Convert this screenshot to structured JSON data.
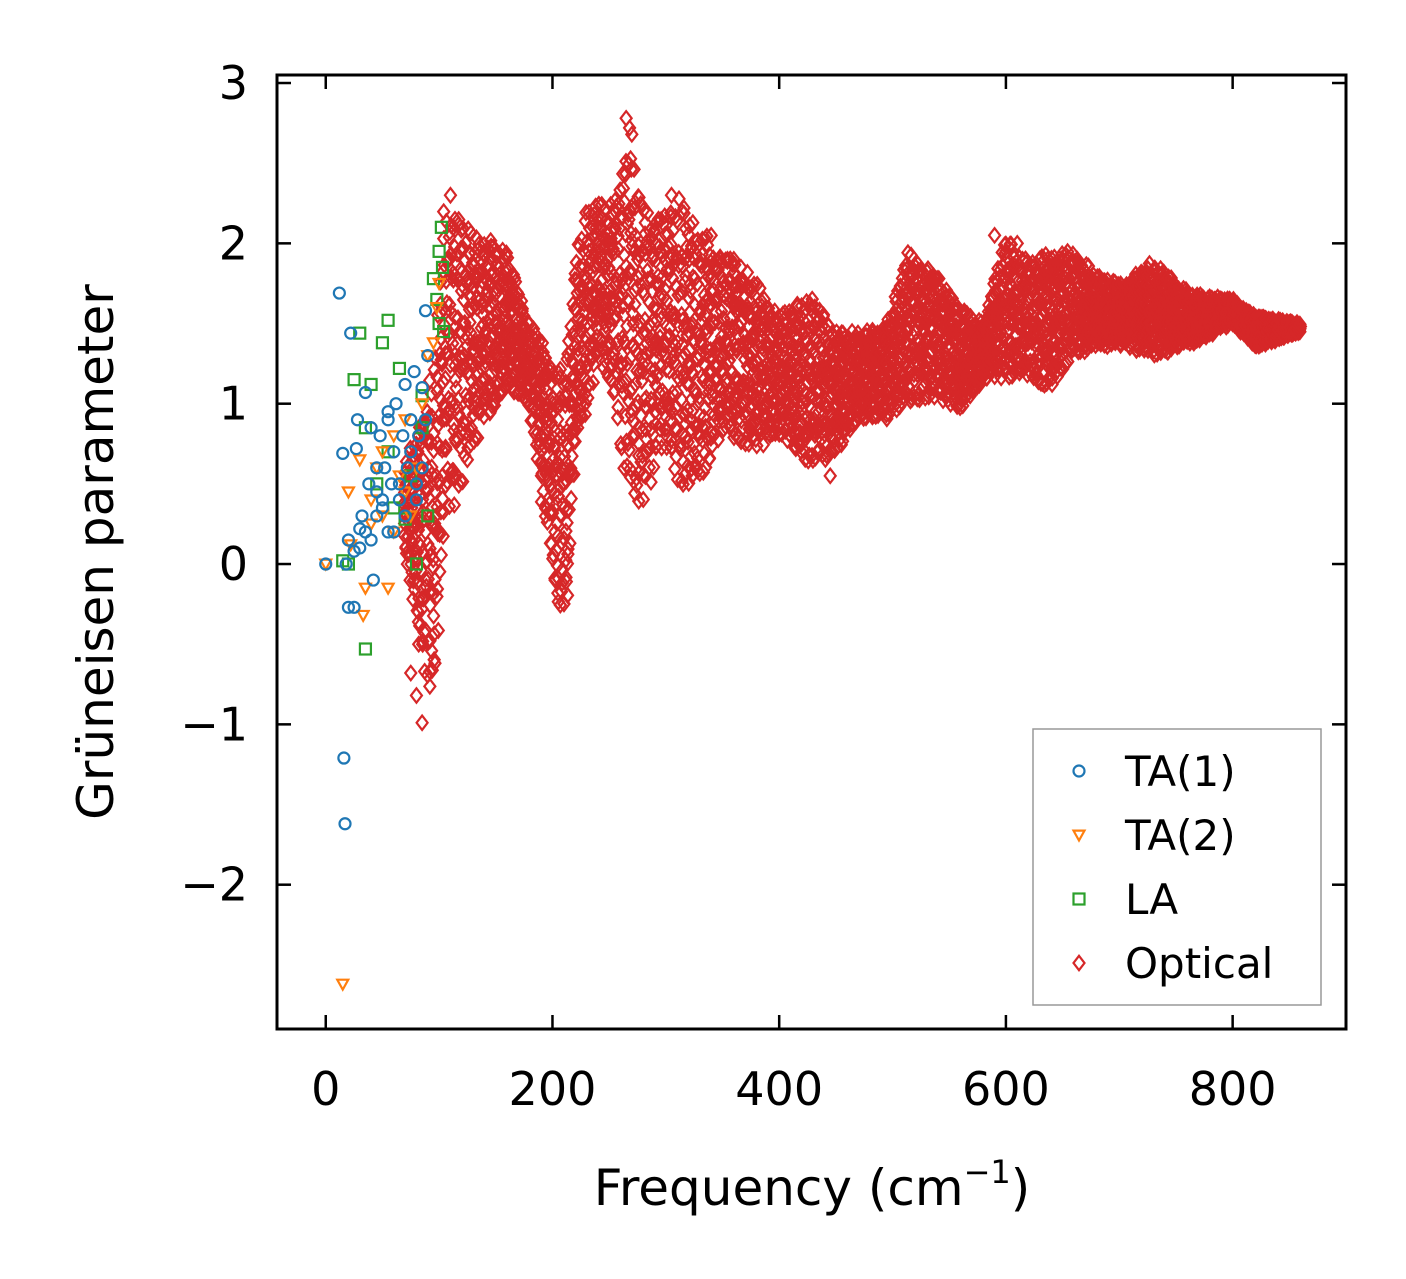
{
  "chart_data": {
    "type": "scatter",
    "title": "",
    "xlabel": "Frequency (cm",
    "xlabel_sup": "−1",
    "xlabel_end": ")",
    "ylabel": "Grüneisen parameter",
    "xlim": [
      -43,
      900
    ],
    "ylim": [
      -2.9,
      3.05
    ],
    "xticks": [
      0,
      200,
      400,
      600,
      800
    ],
    "xtick_labels": [
      "0",
      "200",
      "400",
      "600",
      "800"
    ],
    "yticks": [
      -2,
      -1,
      0,
      1,
      2,
      3
    ],
    "ytick_labels": [
      "−2",
      "−1",
      "0",
      "1",
      "2",
      "3"
    ],
    "grid": false,
    "legend_position": "lower-right",
    "series": [
      {
        "name": "TA(1)",
        "marker": "circle",
        "color": "#1f77b4",
        "x": [
          0,
          12,
          15,
          16,
          17,
          18,
          20,
          22,
          25,
          27,
          28,
          30,
          32,
          35,
          35,
          38,
          40,
          42,
          45,
          45,
          48,
          50,
          52,
          55,
          55,
          58,
          60,
          62,
          65,
          68,
          70,
          72,
          75,
          78,
          80,
          82,
          85,
          88,
          90,
          88,
          85,
          80,
          75,
          70,
          65,
          60,
          55,
          50,
          45,
          40,
          30,
          25,
          20
        ],
        "y": [
          0.0,
          1.69,
          0.69,
          -1.21,
          -1.62,
          0.0,
          -0.27,
          1.44,
          -0.27,
          0.72,
          0.9,
          0.1,
          0.3,
          1.07,
          0.2,
          0.5,
          0.85,
          -0.1,
          0.3,
          0.6,
          0.8,
          0.4,
          0.6,
          0.9,
          0.2,
          0.5,
          0.7,
          1.0,
          0.4,
          0.8,
          1.12,
          0.6,
          0.9,
          1.2,
          0.5,
          0.8,
          1.1,
          1.58,
          1.3,
          0.9,
          0.6,
          0.4,
          0.7,
          0.3,
          0.5,
          0.2,
          0.95,
          0.35,
          0.45,
          0.15,
          0.22,
          0.08,
          0.15
        ]
      },
      {
        "name": "TA(2)",
        "marker": "triangle-down",
        "color": "#ff7f0e",
        "x": [
          0,
          15,
          20,
          22,
          30,
          33,
          35,
          40,
          45,
          50,
          55,
          60,
          65,
          70,
          75,
          80,
          85,
          90,
          95,
          98,
          100,
          60,
          70,
          50,
          40
        ],
        "y": [
          0.0,
          -2.62,
          0.45,
          0.12,
          0.65,
          -0.32,
          -0.15,
          0.4,
          0.6,
          0.3,
          -0.15,
          0.8,
          0.55,
          0.9,
          0.3,
          0.6,
          1.0,
          1.3,
          1.38,
          1.6,
          1.75,
          0.2,
          0.45,
          0.7,
          0.25
        ]
      },
      {
        "name": "LA",
        "marker": "square",
        "color": "#2ca02c",
        "x": [
          15,
          20,
          25,
          30,
          35,
          35,
          40,
          45,
          50,
          55,
          55,
          60,
          65,
          70,
          75,
          80,
          85,
          85,
          90,
          95,
          98,
          100,
          100,
          102,
          103,
          104
        ],
        "y": [
          0.02,
          0.0,
          1.15,
          1.44,
          0.85,
          -0.53,
          1.12,
          0.5,
          1.38,
          1.52,
          0.7,
          0.35,
          1.22,
          0.28,
          0.55,
          0.0,
          0.85,
          1.05,
          0.3,
          1.78,
          1.65,
          1.95,
          1.5,
          2.1,
          1.85,
          1.45
        ]
      },
      {
        "name": "Optical",
        "marker": "diamond",
        "color": "#d62728",
        "band_x": [
          70,
          85,
          95,
          105,
          115,
          125,
          140,
          160,
          180,
          195,
          205,
          212,
          220,
          230,
          240,
          255,
          265,
          280,
          295,
          310,
          330,
          350,
          375,
          400,
          430,
          450,
          470,
          495,
          515,
          535,
          560,
          580,
          600,
          615,
          640,
          660,
          680,
          705,
          730,
          760,
          800,
          820,
          860
        ],
        "band_low": [
          0.1,
          -0.6,
          -0.9,
          0.3,
          0.35,
          0.6,
          0.9,
          1.1,
          1.0,
          0.2,
          -0.3,
          -0.35,
          0.7,
          0.9,
          1.3,
          1.0,
          0.5,
          0.35,
          0.75,
          0.5,
          0.45,
          0.85,
          0.7,
          0.8,
          0.6,
          0.7,
          0.9,
          0.9,
          1.0,
          1.05,
          0.95,
          1.15,
          1.15,
          1.15,
          1.1,
          1.3,
          1.35,
          1.35,
          1.3,
          1.35,
          1.5,
          1.35,
          1.45
        ],
        "band_high": [
          0.6,
          1.0,
          1.2,
          2.25,
          2.25,
          2.1,
          2.05,
          1.95,
          1.5,
          1.35,
          1.3,
          1.25,
          1.9,
          2.2,
          2.25,
          2.25,
          2.7,
          2.25,
          2.15,
          2.3,
          2.1,
          1.95,
          1.8,
          1.55,
          1.7,
          1.45,
          1.45,
          1.5,
          1.95,
          1.85,
          1.6,
          1.5,
          2.05,
          1.9,
          1.95,
          1.95,
          1.8,
          1.75,
          1.9,
          1.7,
          1.65,
          1.55,
          1.5
        ],
        "x": [
          85,
          80,
          75,
          82,
          110,
          265,
          268,
          270,
          305,
          340,
          360,
          445,
          420,
          450,
          590,
          610
        ],
        "y": [
          -0.99,
          -0.82,
          -0.68,
          -0.5,
          2.3,
          2.78,
          2.72,
          2.68,
          2.3,
          2.05,
          1.9,
          0.55,
          0.75,
          0.9,
          2.05,
          2.0
        ]
      }
    ]
  }
}
